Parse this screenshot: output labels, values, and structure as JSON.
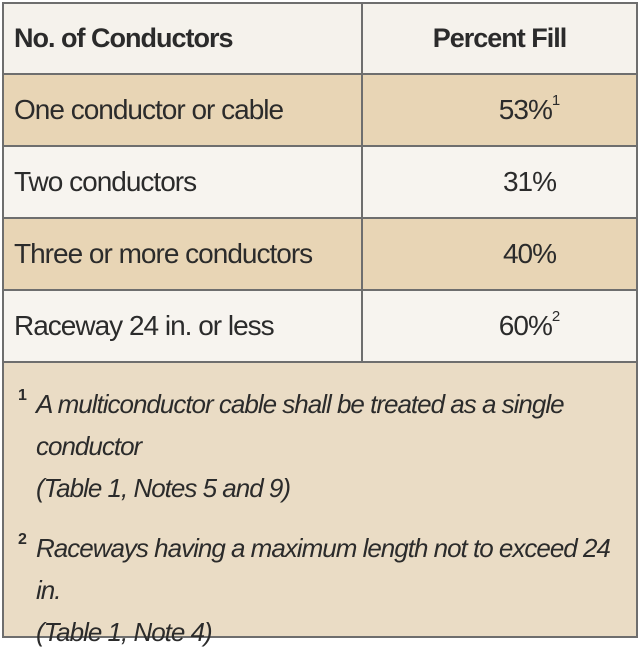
{
  "table": {
    "headers": [
      "No. of Conductors",
      "Percent Fill"
    ],
    "rows": [
      {
        "label": "One conductor or cable",
        "value": "53%",
        "note": "1"
      },
      {
        "label": "Two conductors",
        "value": "31%",
        "note": ""
      },
      {
        "label": "Three or more conductors",
        "value": "40%",
        "note": ""
      },
      {
        "label": "Raceway 24 in. or less",
        "value": "60%",
        "note": "2"
      }
    ]
  },
  "notes": [
    {
      "mark": "1",
      "line1": "A multiconductor cable shall be treated as a single conductor",
      "line2": "(Table 1, Notes 5 and 9)"
    },
    {
      "mark": "2",
      "line1": "Raceways having a maximum length not to exceed 24 in.",
      "line2": "(Table 1, Note 4)"
    }
  ]
}
